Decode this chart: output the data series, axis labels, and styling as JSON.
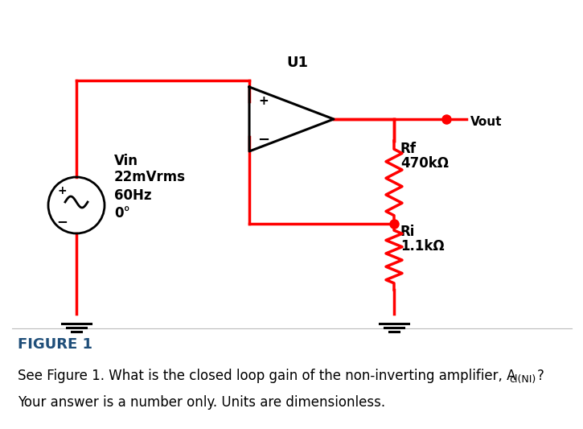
{
  "bg_color": "#ffffff",
  "wire_color": "#ff0000",
  "black_color": "#000000",
  "fig_label_color": "#1f4e79",
  "question_color": "#1a3c5e",
  "answer_color": "#1a3c5e",
  "fig_label": "FIGURE 1",
  "question_text": "See Figure 1. What is the closed loop gain of the non-inverting amplifier, A",
  "subscript_text": "cl(NI)",
  "question_end": "?",
  "answer_text": "Your answer is a number only. Units are dimensionless.",
  "u1_label": "U1",
  "vout_label": "Vout",
  "rf_label": "Rf",
  "rf_value": "470kΩ",
  "ri_label": "Ri",
  "ri_value": "1.1kΩ",
  "vin_label": "Vin",
  "vin_value": "22mVrms",
  "vin_freq": "60Hz",
  "vin_phase": "0°"
}
